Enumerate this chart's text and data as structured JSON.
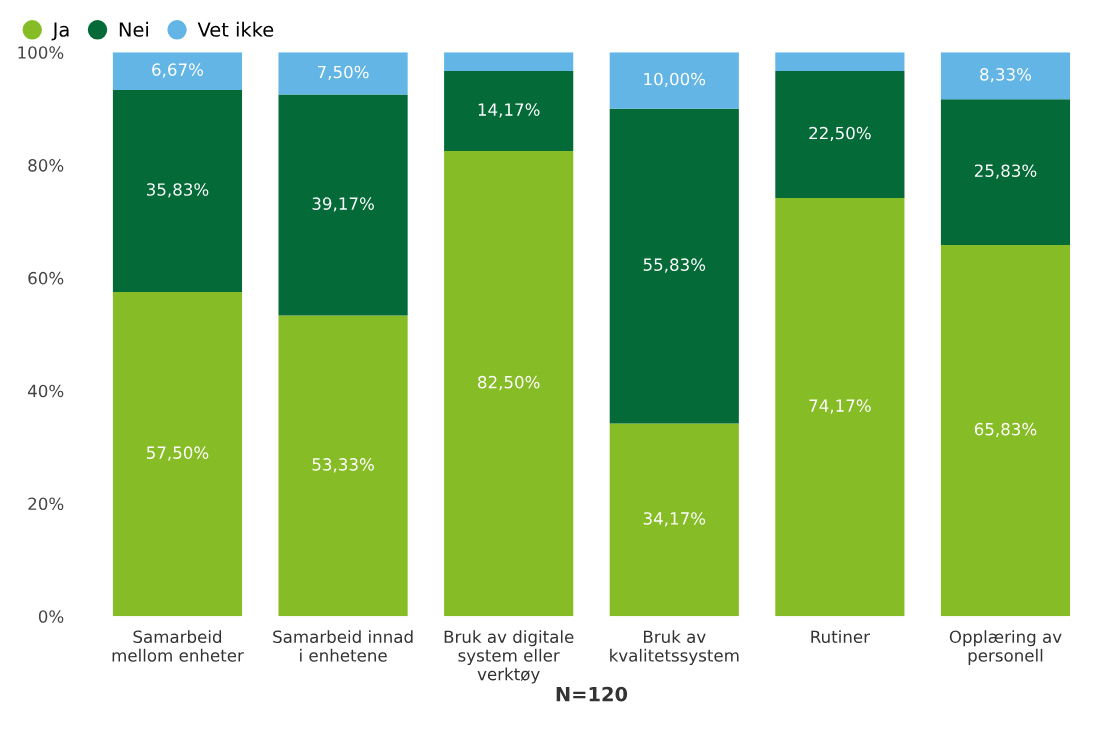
{
  "chart_data": {
    "type": "bar",
    "stacked": true,
    "xlabel": "N=120",
    "categories": [
      "Samarbeid\nmellom enheter",
      "Samarbeid innad\ni enhetene",
      "Bruk av digitale\nsystem eller\nverktøy",
      "Bruk av\nkvalitetssystem",
      "Rutiner",
      "Opplæring av\npersonell"
    ],
    "series": [
      {
        "name": "Ja",
        "color": "#86bc25",
        "values": [
          57.5,
          53.33,
          82.5,
          34.17,
          74.17,
          65.83
        ],
        "value_labels": [
          "57,50%",
          "53,33%",
          "82,50%",
          "34,17%",
          "74,17%",
          "65,83%"
        ]
      },
      {
        "name": "Nei",
        "color": "#046a38",
        "values": [
          35.83,
          39.17,
          14.17,
          55.83,
          22.5,
          25.83
        ],
        "value_labels": [
          "35,83%",
          "39,17%",
          "14,17%",
          "55,83%",
          "22,50%",
          "25,83%"
        ]
      },
      {
        "name": "Vet ikke",
        "color": "#62b5e5",
        "values": [
          6.67,
          7.5,
          3.33,
          10.0,
          3.33,
          8.33
        ],
        "value_labels": [
          "6,67%",
          "7,50%",
          null,
          "10,00%",
          null,
          "8,33%"
        ]
      }
    ],
    "ylim": [
      0,
      100
    ],
    "yticks": [
      {
        "value": 0,
        "label": "0%"
      },
      {
        "value": 20,
        "label": "20%"
      },
      {
        "value": 40,
        "label": "40%"
      },
      {
        "value": 60,
        "label": "60%"
      },
      {
        "value": 80,
        "label": "80%"
      },
      {
        "value": 100,
        "label": "100%"
      }
    ],
    "grid": false,
    "legend": "top left",
    "marker": "circle"
  }
}
